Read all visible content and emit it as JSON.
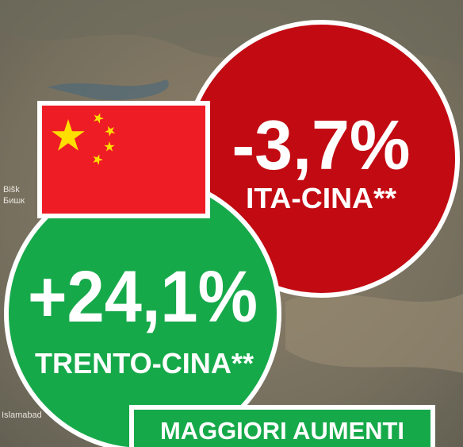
{
  "red_badge": {
    "value": "-3,7%",
    "label": "ITA-CINA**"
  },
  "green_badge": {
    "value": "+24,1%",
    "label": "TRENTO-CINA**"
  },
  "banner": {
    "text": "MAGGIORI AUMENTI"
  },
  "map_labels": [
    "Bišk",
    "Бишк",
    "Islamabad"
  ]
}
